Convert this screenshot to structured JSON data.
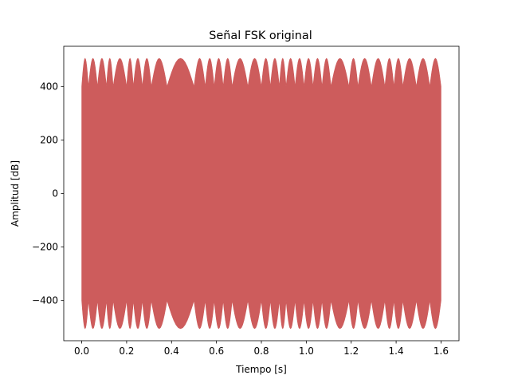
{
  "chart_data": {
    "type": "area",
    "title": "Señal FSK original",
    "xlabel": "Tiempo [s]",
    "ylabel": "Amplitud [dB]",
    "xlim": [
      -0.08,
      1.68
    ],
    "ylim": [
      -550,
      550
    ],
    "xticks": [
      0.0,
      0.2,
      0.4,
      0.6,
      0.8,
      1.0,
      1.2,
      1.4,
      1.6
    ],
    "xtick_labels": [
      "0.0",
      "0.2",
      "0.4",
      "0.6",
      "0.8",
      "1.0",
      "1.2",
      "1.4",
      "1.6"
    ],
    "yticks": [
      -400,
      -200,
      0,
      200,
      400
    ],
    "ytick_labels": [
      "−400",
      "−200",
      "0",
      "200",
      "400"
    ],
    "grid": false,
    "color": "#cd5c5c",
    "series": [
      {
        "x_range": [
          0.0,
          1.6
        ],
        "envelope_max": 505,
        "envelope_min_inner": 400,
        "lobes": [
          {
            "start": 0.0,
            "end": 0.03
          },
          {
            "start": 0.03,
            "end": 0.07
          },
          {
            "start": 0.07,
            "end": 0.11
          },
          {
            "start": 0.11,
            "end": 0.14
          },
          {
            "start": 0.14,
            "end": 0.2
          },
          {
            "start": 0.2,
            "end": 0.23
          },
          {
            "start": 0.23,
            "end": 0.27
          },
          {
            "start": 0.27,
            "end": 0.31
          },
          {
            "start": 0.31,
            "end": 0.38
          },
          {
            "start": 0.38,
            "end": 0.5
          },
          {
            "start": 0.5,
            "end": 0.55
          },
          {
            "start": 0.55,
            "end": 0.59
          },
          {
            "start": 0.59,
            "end": 0.63
          },
          {
            "start": 0.63,
            "end": 0.67
          },
          {
            "start": 0.67,
            "end": 0.74
          },
          {
            "start": 0.74,
            "end": 0.8
          },
          {
            "start": 0.8,
            "end": 0.84
          },
          {
            "start": 0.84,
            "end": 0.88
          },
          {
            "start": 0.88,
            "end": 0.91
          },
          {
            "start": 0.91,
            "end": 0.95
          },
          {
            "start": 0.95,
            "end": 0.99
          },
          {
            "start": 0.99,
            "end": 1.03
          },
          {
            "start": 1.03,
            "end": 1.07
          },
          {
            "start": 1.07,
            "end": 1.11
          },
          {
            "start": 1.11,
            "end": 1.19
          },
          {
            "start": 1.19,
            "end": 1.23
          },
          {
            "start": 1.23,
            "end": 1.29
          },
          {
            "start": 1.29,
            "end": 1.35
          },
          {
            "start": 1.35,
            "end": 1.39
          },
          {
            "start": 1.39,
            "end": 1.43
          },
          {
            "start": 1.43,
            "end": 1.49
          },
          {
            "start": 1.49,
            "end": 1.55
          },
          {
            "start": 1.55,
            "end": 1.6
          }
        ]
      }
    ]
  }
}
